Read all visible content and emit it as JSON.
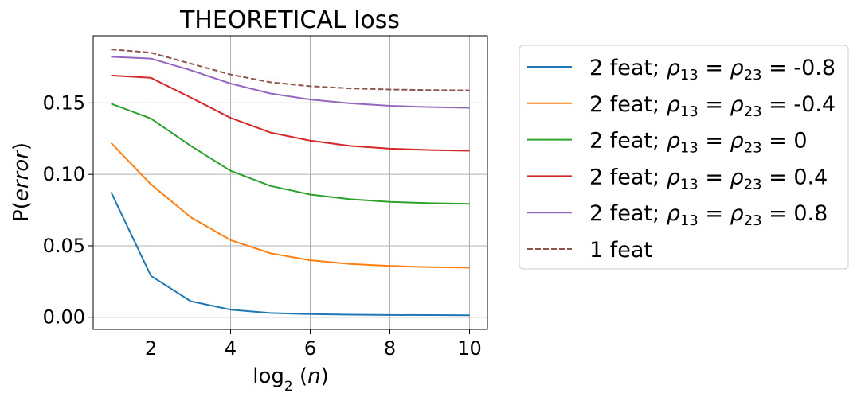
{
  "chart_data": {
    "type": "line",
    "title": "THEORETICAL loss",
    "xlabel": "log₂ (n)",
    "ylabel": "P(error)",
    "xlim": [
      0.55,
      10.45
    ],
    "ylim": [
      -0.0085,
      0.197
    ],
    "x_ticks": [
      2,
      4,
      6,
      8,
      10
    ],
    "x_tick_labels": [
      "2",
      "4",
      "6",
      "8",
      "10"
    ],
    "y_ticks": [
      0.0,
      0.05,
      0.1,
      0.15
    ],
    "y_tick_labels": [
      "0.00",
      "0.05",
      "0.10",
      "0.15"
    ],
    "grid": true,
    "legend_position": "outside-right",
    "x": [
      1,
      2,
      3,
      4,
      5,
      6,
      7,
      8,
      9,
      10
    ],
    "series": [
      {
        "name": "2 feat; ρ13 = ρ23 = -0.8",
        "color": "#1f77b4",
        "dash": "solid",
        "values": [
          0.0875,
          0.029,
          0.0112,
          0.0053,
          0.003,
          0.0022,
          0.0018,
          0.0016,
          0.0015,
          0.0014
        ]
      },
      {
        "name": "2 feat; ρ13 = ρ23 = -0.4",
        "color": "#ff7f0e",
        "dash": "solid",
        "values": [
          0.122,
          0.093,
          0.07,
          0.054,
          0.0448,
          0.0399,
          0.0373,
          0.0359,
          0.0351,
          0.0347
        ]
      },
      {
        "name": "2 feat; ρ13 = ρ23 = 0",
        "color": "#2ca02c",
        "dash": "solid",
        "values": [
          0.1495,
          0.139,
          0.12,
          0.1025,
          0.0919,
          0.0859,
          0.0826,
          0.0808,
          0.0798,
          0.0793
        ]
      },
      {
        "name": "2 feat; ρ13 = ρ23 = 0.4",
        "color": "#d62728",
        "dash": "solid",
        "values": [
          0.1692,
          0.1676,
          0.1538,
          0.1395,
          0.1293,
          0.1236,
          0.1199,
          0.118,
          0.117,
          0.1165
        ]
      },
      {
        "name": "2 feat; ρ13 = ρ23 = 0.8",
        "color": "#9467bd",
        "dash": "solid",
        "values": [
          0.1823,
          0.1811,
          0.1729,
          0.1636,
          0.1566,
          0.1524,
          0.1497,
          0.148,
          0.1471,
          0.1466
        ]
      },
      {
        "name": "1 feat",
        "color": "#8c564b",
        "dash": "dashed",
        "values": [
          0.1875,
          0.1852,
          0.1775,
          0.1699,
          0.1645,
          0.1617,
          0.1602,
          0.1594,
          0.159,
          0.1588
        ]
      }
    ],
    "legend": [
      {
        "prefix": "2 feat; ",
        "rho_a": "ρ",
        "sub_a": "13",
        "eq": " = ",
        "rho_b": "ρ",
        "sub_b": "23",
        "suffix": " = -0.8"
      },
      {
        "prefix": "2 feat; ",
        "rho_a": "ρ",
        "sub_a": "13",
        "eq": " = ",
        "rho_b": "ρ",
        "sub_b": "23",
        "suffix": " = -0.4"
      },
      {
        "prefix": "2 feat; ",
        "rho_a": "ρ",
        "sub_a": "13",
        "eq": " = ",
        "rho_b": "ρ",
        "sub_b": "23",
        "suffix": " = 0"
      },
      {
        "prefix": "2 feat; ",
        "rho_a": "ρ",
        "sub_a": "13",
        "eq": " = ",
        "rho_b": "ρ",
        "sub_b": "23",
        "suffix": " = 0.4"
      },
      {
        "prefix": "2 feat; ",
        "rho_a": "ρ",
        "sub_a": "13",
        "eq": " = ",
        "rho_b": "ρ",
        "sub_b": "23",
        "suffix": " = 0.8"
      },
      {
        "prefix": "1 feat",
        "rho_a": "",
        "sub_a": "",
        "eq": "",
        "rho_b": "",
        "sub_b": "",
        "suffix": ""
      }
    ]
  }
}
